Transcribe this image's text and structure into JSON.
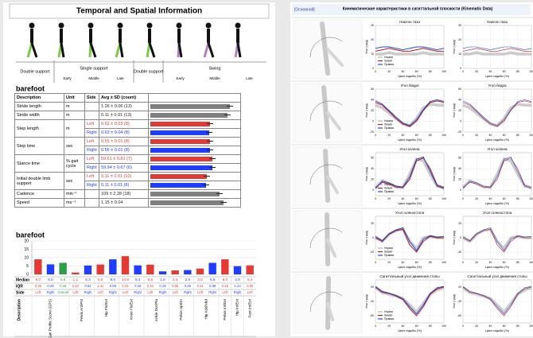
{
  "left_page": {
    "title": "Temporal and Spatial Information",
    "phases": [
      {
        "label": "Double support",
        "sub": []
      },
      {
        "label": "Single support",
        "sub": [
          "Early",
          "Middle",
          "Late"
        ]
      },
      {
        "label": "Double support",
        "sub": []
      },
      {
        "label": "Swing",
        "sub": [
          "Early",
          "Middle",
          "Late"
        ]
      }
    ],
    "table_title": "barefoot",
    "table": {
      "headers": [
        "Description",
        "Unit",
        "Side",
        "Avg ± SD (count)"
      ],
      "rows": [
        {
          "description": "Stride length",
          "unit": "m",
          "entries": [
            {
              "value": "1.26 ± 0.06 (13)"
            }
          ]
        },
        {
          "description": "Stride width",
          "unit": "m",
          "entries": [
            {
              "value": "0.11 ± 0.01 (13)"
            }
          ]
        },
        {
          "description": "Step length",
          "unit": "m",
          "entries": [
            {
              "side": "Left",
              "value": "0.62 ± 0.03 (8)"
            },
            {
              "side": "Right",
              "value": "0.63 ± 0.04 (8)"
            }
          ]
        },
        {
          "description": "Step time",
          "unit": "sec",
          "entries": [
            {
              "side": "Left",
              "value": "0.55 ± 0.01 (8)"
            },
            {
              "side": "Right",
              "value": "0.55 ± 0.01 (8)"
            }
          ]
        },
        {
          "description": "Stance time",
          "unit": "% gait cycle",
          "entries": [
            {
              "side": "Left",
              "value": "59.61 ± 0.81 (7)"
            },
            {
              "side": "Right",
              "value": "59.94 ± 0.67 (6)"
            }
          ]
        },
        {
          "description": "Initial double limb support",
          "unit": "sec",
          "entries": [
            {
              "side": "Left",
              "value": "0.11 ± 0.01 (10)"
            },
            {
              "side": "Right",
              "value": "0.11 ± 0.01 (8)"
            }
          ]
        },
        {
          "description": "Cadence",
          "unit": "min⁻¹",
          "entries": [
            {
              "value": "109 ± 2.28 (18)"
            }
          ]
        },
        {
          "description": "Speed",
          "unit": "ms⁻¹",
          "entries": [
            {
              "value": "1.15 ± 0.04"
            }
          ]
        }
      ]
    },
    "side_names": [
      "Left",
      "Right",
      "Overall"
    ],
    "side_colors": [
      "#e53935",
      "#1f3cff",
      "#2e9e4a"
    ],
    "chart_title": "barefoot",
    "row_labels": [
      "Median",
      "IQR",
      "Side",
      "Description"
    ]
  },
  "right_page": {
    "tag": "[Основной]",
    "title": "Кинематические характеристики в сагиттальной плоскости (Kinematic Data)"
  },
  "chart_data": [
    {
      "type": "bar",
      "categories": [
        "Gait Profile Score (GPS)",
        null,
        null,
        "Pelvis Ant/Pst",
        null,
        "Hip Flx/Ext",
        null,
        "Knee Flx/Ext",
        null,
        "Ankle Dor/Pla",
        null,
        "Pelvis Up/Dn",
        null,
        "Hip Add/Abd",
        null,
        "Pelvis Int/Ext",
        "Hip Int/Ext",
        "Foot Int/Ext"
      ],
      "sides": [
        "Left",
        "Right",
        "Overall",
        "Left",
        "Right",
        "Left",
        "Right",
        "Left",
        "Right",
        "Left",
        "Right",
        "Left",
        "Right",
        "Left",
        "Right",
        "Left",
        "Right",
        "Left"
      ],
      "values": [
        9,
        6,
        6.9,
        1.1,
        5.3,
        5.9,
        9,
        10.9,
        5.4,
        5.8,
        1.8,
        2.4,
        2.6,
        3.5,
        6.9,
        9,
        4.9,
        5.4
      ],
      "value_labels": [
        "9.0",
        "6.0",
        "6.9",
        "1.1",
        "5.3",
        "5.9",
        "9.0",
        "10.9",
        "5.4",
        "5.8",
        "1.8",
        "2.4",
        "2.6",
        "3.5",
        "6.9",
        "9.0",
        "4.9",
        "5.4"
      ],
      "iqr": [
        "0.35",
        "0.29",
        "0.28",
        "0.10",
        "0.62",
        "1.31",
        "0.89",
        "0.31",
        "0.18",
        "0.10",
        "0.19",
        "0.55",
        "0.25",
        "0.11",
        "0.99",
        "0.45",
        "1.13",
        "0.80"
      ],
      "ylim": [
        0,
        20
      ],
      "yticks": [
        0,
        5,
        10,
        15,
        20
      ],
      "grid": true
    },
    {
      "type": "line",
      "title": "Наклон таза",
      "xlabel": "Цикл ходьбы (%)",
      "ylabel": "Угол (град)",
      "x": [
        0,
        10,
        20,
        30,
        40,
        50,
        60,
        70,
        80,
        90,
        100
      ],
      "xlim": [
        0,
        100
      ],
      "xticks": [
        0,
        20,
        40,
        60,
        80,
        100
      ],
      "ylim": [
        0,
        30
      ],
      "yticks": [
        0,
        10,
        20,
        30
      ],
      "series": [
        {
          "name": "Норма",
          "color": "#b5b5b5",
          "values": [
            10,
            10,
            11,
            10,
            10,
            10,
            10,
            11,
            10,
            10,
            10
          ]
        },
        {
          "name": "Левая",
          "color": "#c0151b",
          "values": [
            12,
            13,
            14,
            13,
            12,
            12,
            13,
            14,
            13,
            12,
            12
          ]
        },
        {
          "name": "Правая",
          "color": "#1f4fd1",
          "values": [
            14,
            15,
            15,
            14,
            13,
            14,
            15,
            15,
            14,
            13,
            14
          ]
        }
      ]
    },
    {
      "type": "line",
      "title": "Угол бедра",
      "xlabel": "Цикл ходьбы (%)",
      "ylabel": "Угол (град)",
      "x": [
        0,
        10,
        20,
        30,
        40,
        50,
        60,
        70,
        80,
        90,
        100
      ],
      "xlim": [
        0,
        100
      ],
      "xticks": [
        0,
        20,
        40,
        60,
        80,
        100
      ],
      "ylim": [
        -20,
        60
      ],
      "yticks": [
        -20,
        0,
        20,
        40,
        60
      ],
      "series": [
        {
          "name": "Норма",
          "color": "#b5b5b5",
          "values": [
            30,
            25,
            15,
            5,
            -5,
            -8,
            5,
            25,
            32,
            30,
            30
          ]
        },
        {
          "name": "Левая",
          "color": "#c0151b",
          "values": [
            35,
            30,
            18,
            5,
            -5,
            -10,
            0,
            20,
            35,
            38,
            35
          ]
        },
        {
          "name": "Правая",
          "color": "#1f4fd1",
          "values": [
            38,
            32,
            20,
            8,
            -3,
            -8,
            3,
            22,
            37,
            40,
            37
          ]
        }
      ]
    },
    {
      "type": "line",
      "title": "Угол колена",
      "xlabel": "Цикл ходьбы (%)",
      "ylabel": "Угол (град)",
      "x": [
        0,
        10,
        20,
        30,
        40,
        50,
        60,
        70,
        80,
        90,
        100
      ],
      "xlim": [
        0,
        100
      ],
      "xticks": [
        0,
        20,
        40,
        60,
        80,
        100
      ],
      "ylim": [
        -10,
        70
      ],
      "yticks": [
        0,
        20,
        40,
        60
      ],
      "series": [
        {
          "name": "Норма",
          "color": "#b5b5b5",
          "values": [
            5,
            18,
            12,
            6,
            5,
            30,
            58,
            55,
            30,
            8,
            5
          ]
        },
        {
          "name": "Левая",
          "color": "#c0151b",
          "values": [
            5,
            15,
            12,
            6,
            5,
            20,
            55,
            60,
            40,
            10,
            5
          ]
        },
        {
          "name": "Правая",
          "color": "#1f4fd1",
          "values": [
            3,
            17,
            14,
            8,
            6,
            25,
            58,
            62,
            35,
            8,
            3
          ]
        }
      ]
    },
    {
      "type": "line",
      "title": "Угол голеностопа",
      "xlabel": "Цикл ходьбы (%)",
      "ylabel": "Угол (град)",
      "x": [
        0,
        10,
        20,
        30,
        40,
        50,
        60,
        70,
        80,
        90,
        100
      ],
      "xlim": [
        0,
        100
      ],
      "xticks": [
        0,
        20,
        40,
        60,
        80,
        100
      ],
      "ylim": [
        -30,
        30
      ],
      "yticks": [
        -20,
        0,
        20
      ],
      "series": [
        {
          "name": "Норма",
          "color": "#b5b5b5",
          "values": [
            0,
            -5,
            5,
            10,
            12,
            -5,
            -15,
            0,
            2,
            0,
            0
          ]
        },
        {
          "name": "Левая",
          "color": "#c0151b",
          "values": [
            0,
            -5,
            5,
            10,
            12,
            -10,
            -20,
            -5,
            2,
            0,
            0
          ]
        },
        {
          "name": "Правая",
          "color": "#1f4fd1",
          "values": [
            2,
            -4,
            6,
            11,
            14,
            -5,
            -18,
            -2,
            3,
            1,
            2
          ]
        }
      ]
    },
    {
      "type": "line",
      "title": "Сагиттальный угол движения стопы",
      "xlabel": "Цикл ходьбы (%)",
      "ylabel": "Угол (град)",
      "x": [
        0,
        10,
        20,
        30,
        40,
        50,
        60,
        70,
        80,
        90,
        100
      ],
      "xlim": [
        0,
        100
      ],
      "xticks": [
        0,
        20,
        40,
        60,
        80,
        100
      ],
      "ylim": [
        -80,
        40
      ],
      "yticks": [
        -60,
        -20,
        20
      ],
      "series": [
        {
          "name": "Норма",
          "color": "#b5b5b5",
          "values": [
            18,
            5,
            0,
            -5,
            -12,
            -30,
            -50,
            -25,
            0,
            12,
            18
          ]
        },
        {
          "name": "Левая",
          "color": "#c0151b",
          "values": [
            20,
            5,
            2,
            -5,
            -15,
            -40,
            -60,
            -35,
            0,
            15,
            20
          ]
        },
        {
          "name": "Правая",
          "color": "#1f4fd1",
          "values": [
            22,
            8,
            3,
            -3,
            -12,
            -35,
            -55,
            -30,
            3,
            18,
            22
          ]
        }
      ]
    }
  ]
}
